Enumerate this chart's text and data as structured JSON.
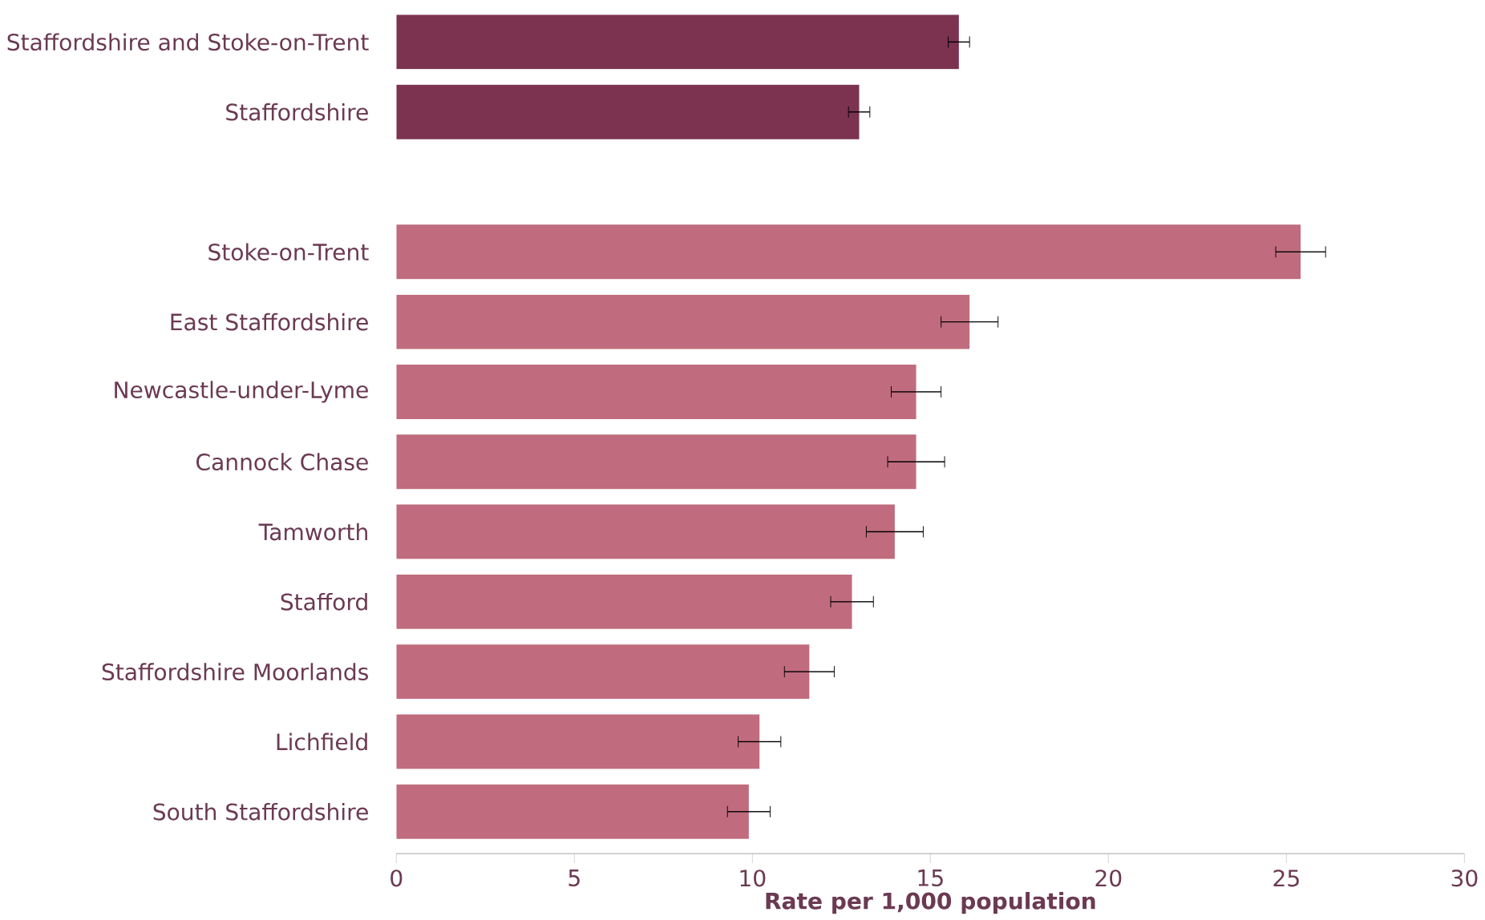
{
  "chart_data": {
    "type": "bar",
    "orientation": "horizontal",
    "xlabel": "Rate per 1,000 population",
    "categories": [
      "Staffordshire and Stoke-on-Trent",
      "Staffordshire",
      null,
      "Stoke-on-Trent",
      "East Staffordshire",
      "Newcastle-under-Lyme",
      "Cannock Chase",
      "Tamworth",
      "Stafford",
      "Staffordshire Moorlands",
      "Lichfield",
      "South Staffordshire"
    ],
    "values": [
      15.8,
      13.0,
      null,
      25.4,
      16.1,
      14.6,
      14.6,
      14.0,
      12.8,
      11.6,
      10.2,
      9.9
    ],
    "errors": [
      0.3,
      0.3,
      null,
      0.7,
      0.8,
      0.7,
      0.8,
      0.8,
      0.6,
      0.7,
      0.6,
      0.6
    ],
    "colors": [
      "#7b3350",
      "#7b3350",
      null,
      "#c06c7e",
      "#c06c7e",
      "#c06c7e",
      "#c06c7e",
      "#c06c7e",
      "#c06c7e",
      "#c06c7e",
      "#c06c7e",
      "#c06c7e"
    ],
    "xlim": [
      0,
      30
    ],
    "xticks": [
      0,
      5,
      10,
      15,
      20,
      25,
      30
    ],
    "grid": false
  }
}
